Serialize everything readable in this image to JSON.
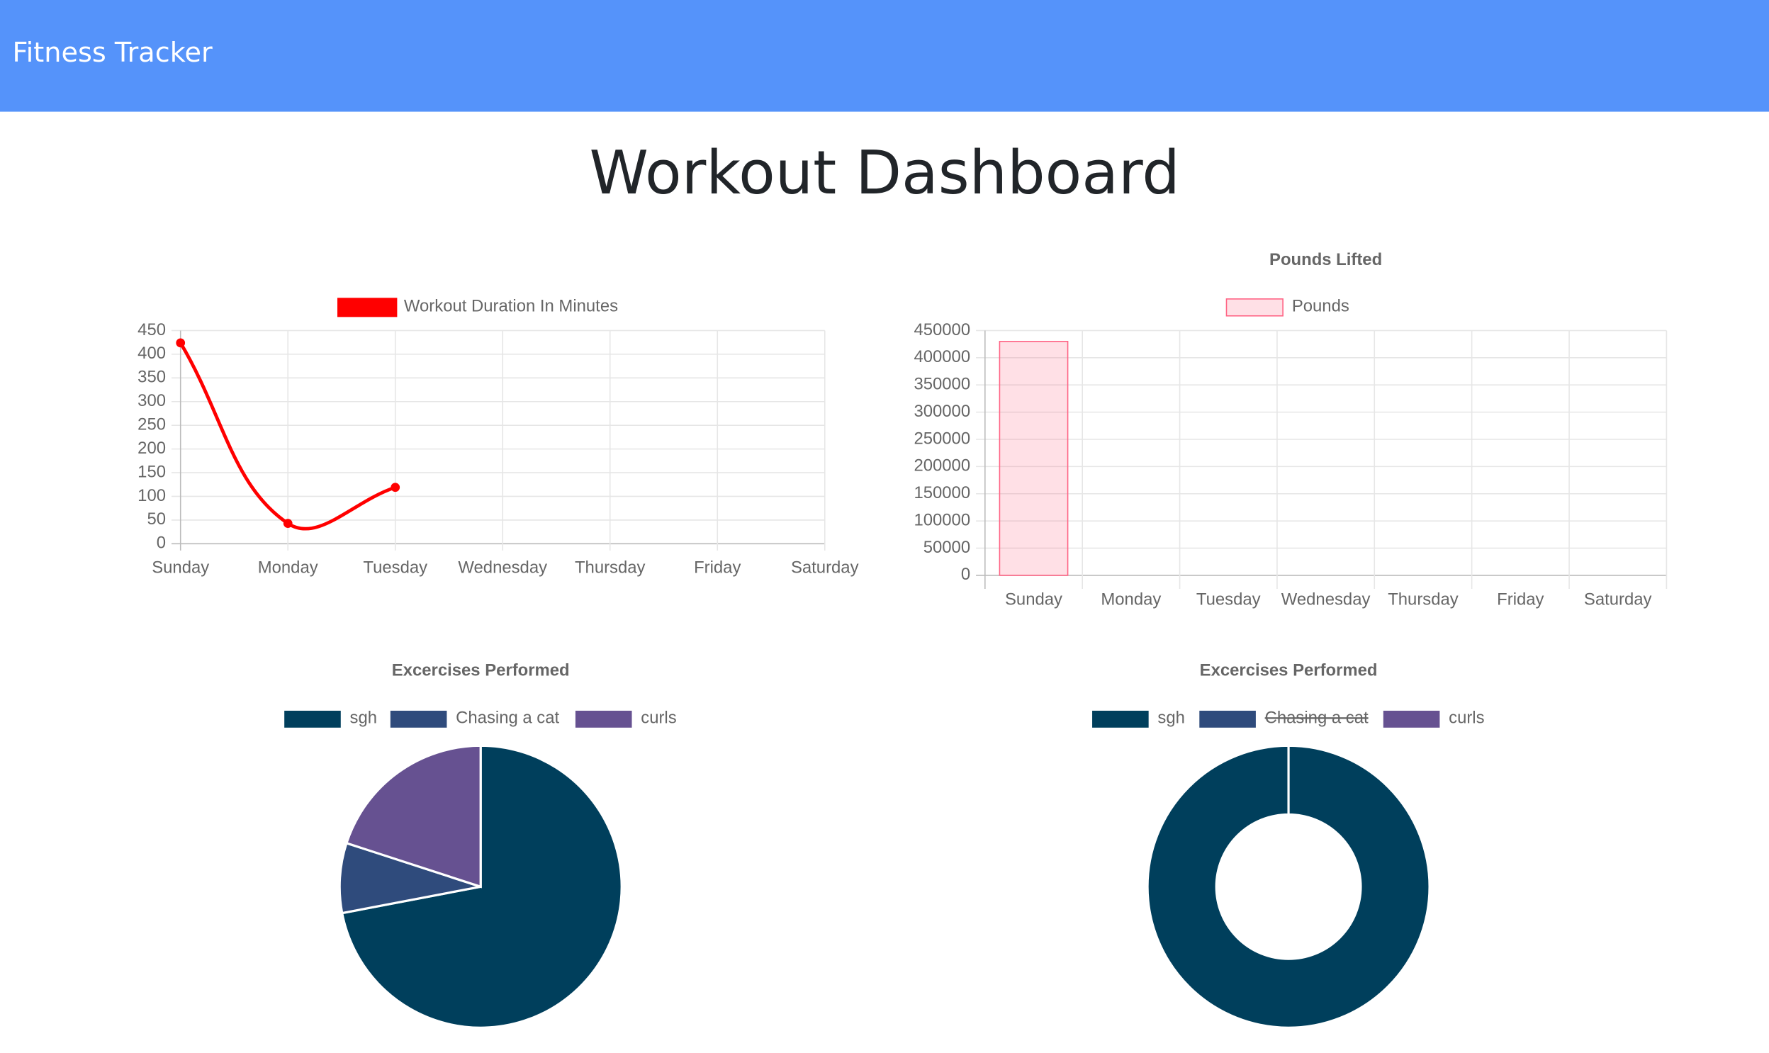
{
  "header": {
    "brand": "Fitness Tracker"
  },
  "heading": "Workout Dashboard",
  "chart_data": [
    {
      "type": "line",
      "categories": [
        "Sunday",
        "Monday",
        "Tuesday",
        "Wednesday",
        "Thursday",
        "Friday",
        "Saturday"
      ],
      "series": [
        {
          "name": "Workout Duration In Minutes",
          "color": "#ff0000",
          "values": [
            424,
            43,
            119,
            null,
            null,
            null,
            null
          ]
        }
      ],
      "ylim": [
        0,
        450
      ],
      "yticks": [
        0,
        50,
        100,
        150,
        200,
        250,
        300,
        350,
        400,
        450
      ],
      "grid": true
    },
    {
      "type": "bar",
      "title": "Pounds Lifted",
      "categories": [
        "Sunday",
        "Monday",
        "Tuesday",
        "Wednesday",
        "Thursday",
        "Friday",
        "Saturday"
      ],
      "series": [
        {
          "name": "Pounds",
          "color": "#ff6384",
          "values": [
            430000,
            null,
            null,
            null,
            null,
            null,
            null
          ]
        }
      ],
      "ylim": [
        0,
        450000
      ],
      "yticks": [
        0,
        50000,
        100000,
        150000,
        200000,
        250000,
        300000,
        350000,
        400000,
        450000
      ],
      "grid": true
    },
    {
      "type": "pie",
      "title": "Excercises Performed",
      "categories": [
        "sgh",
        "Chasing a cat",
        "curls"
      ],
      "values": [
        72,
        8,
        20
      ],
      "colors": [
        "#003f5c",
        "#2f4b7c",
        "#665191"
      ],
      "hidden": [
        false,
        false,
        false
      ]
    },
    {
      "type": "doughnut",
      "title": "Excercises Performed",
      "categories": [
        "sgh",
        "Chasing a cat",
        "curls"
      ],
      "values": [
        100,
        null,
        0
      ],
      "colors": [
        "#003f5c",
        "#2f4b7c",
        "#665191"
      ],
      "hidden": [
        false,
        true,
        false
      ]
    }
  ]
}
